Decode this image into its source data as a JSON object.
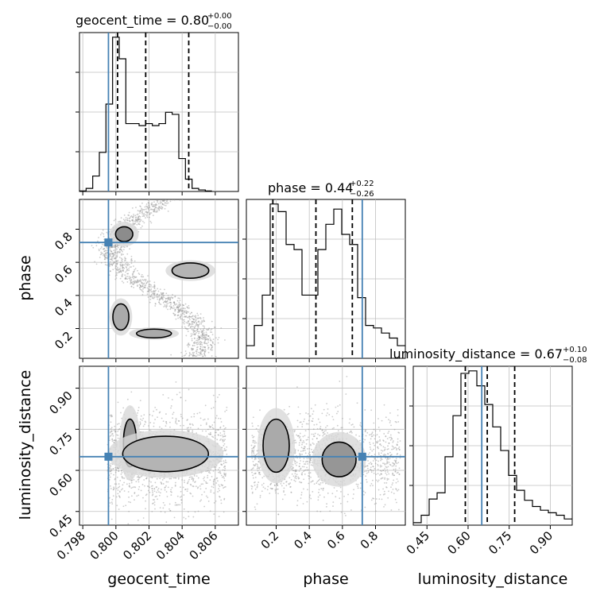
{
  "chart_data": {
    "type": "corner",
    "parameters": [
      "geocent_time",
      "phase",
      "luminosity_distance"
    ],
    "truths": {
      "geocent_time": 0.79955,
      "phase": 0.72,
      "luminosity_distance": 0.65
    },
    "colors": {
      "truth": "#4682b4",
      "hist": "#000000",
      "grid": "#bfbfbf"
    },
    "titles": {
      "geocent_time": {
        "label": "geocent_time = 0.80",
        "upper": "+0.00",
        "lower": "−0.00"
      },
      "phase": {
        "label": "phase = 0.44",
        "upper": "+0.22",
        "lower": "−0.26"
      },
      "luminosity_distance": {
        "label": "luminosity_distance = 0.67",
        "upper": "+0.10",
        "lower": "−0.08"
      }
    },
    "xlabels": {
      "geocent_time": "geocent_time",
      "phase": "phase",
      "luminosity_distance": "luminosity_distance"
    },
    "ylabels": {
      "phase": "phase",
      "luminosity_distance": "luminosity_distance"
    },
    "ranges": {
      "geocent_time": [
        0.7978,
        0.8074
      ],
      "phase": [
        0.02,
        0.98
      ],
      "luminosity_distance": [
        0.4,
        0.98
      ]
    },
    "ticks": {
      "geocent_time": {
        "values": [
          0.798,
          0.8,
          0.802,
          0.804,
          0.806
        ],
        "labels": [
          "0.798",
          "0.800",
          "0.802",
          "0.804",
          "0.806"
        ]
      },
      "phase": {
        "values": [
          0.2,
          0.4,
          0.6,
          0.8
        ],
        "labels": [
          "0.2",
          "0.4",
          "0.6",
          "0.8"
        ]
      },
      "luminosity_distance": {
        "values": [
          0.45,
          0.6,
          0.75,
          0.9
        ],
        "labels": [
          "0.45",
          "0.60",
          "0.75",
          "0.90"
        ]
      }
    },
    "quantiles": {
      "geocent_time": [
        0.8001,
        0.8018,
        0.8044
      ],
      "phase": [
        0.18,
        0.44,
        0.66
      ],
      "luminosity_distance": [
        0.59,
        0.67,
        0.77
      ]
    },
    "histograms": {
      "geocent_time": {
        "edges_start": 0.7978,
        "bin_width": 0.0004,
        "counts": [
          0.5,
          3,
          15,
          38,
          85,
          150,
          129,
          66,
          66,
          64,
          66,
          64,
          66,
          77,
          75,
          32,
          12,
          3,
          1.5,
          0.5
        ]
      },
      "phase": {
        "edges_start": 0.02,
        "bin_width": 0.048,
        "counts": [
          5,
          13,
          25,
          61,
          58,
          45,
          43,
          25,
          25,
          43,
          53,
          59,
          49,
          45,
          24,
          13,
          12,
          10,
          8,
          5
        ]
      },
      "luminosity_distance": {
        "edges_start": 0.4,
        "bin_width": 0.029,
        "counts": [
          2,
          8,
          21,
          26,
          55,
          88,
          122,
          124,
          112,
          97,
          79,
          60,
          40,
          28,
          20,
          15,
          12,
          10,
          8,
          5
        ]
      }
    }
  }
}
